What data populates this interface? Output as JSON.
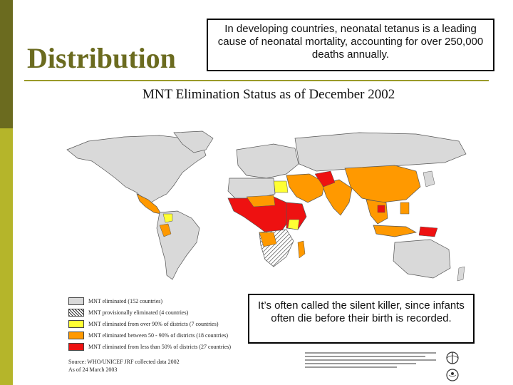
{
  "slide": {
    "title": "Distribution",
    "callout_top": "In developing countries, neonatal tetanus is a leading cause of neonatal mortality, accounting for over 250,000 deaths annually.",
    "callout_bottom": "It’s often called the silent killer, since infants often die before their birth is recorded."
  },
  "map": {
    "title": "MNT Elimination Status as of December 2002",
    "legend": [
      {
        "label": "MNT eliminated (152 countries)",
        "color": "#d9d9d9"
      },
      {
        "label": "MNT provisionally eliminated (4 countries)",
        "color": "#ffffff",
        "pattern": "hatched"
      },
      {
        "label": "MNT eliminated from over 90% of districts (7 countries)",
        "color": "#ffff33"
      },
      {
        "label": "MNT eliminated between 50 - 90% of districts (18 countries)",
        "color": "#ff9900"
      },
      {
        "label": "MNT eliminated from less than 50% of districts (27 countries)",
        "color": "#ee1111"
      }
    ],
    "source": "Source: WHO/UNICEF JRF collected data 2002",
    "date": "As of 24 March 2003"
  },
  "colors": {
    "sidebar_dark": "#6b6b1f",
    "sidebar_light": "#b5b52a",
    "title": "#6b6b1f",
    "eliminated": "#d9d9d9",
    "over90": "#ffff33",
    "between50_90": "#ff9900",
    "under50": "#ee1111"
  }
}
